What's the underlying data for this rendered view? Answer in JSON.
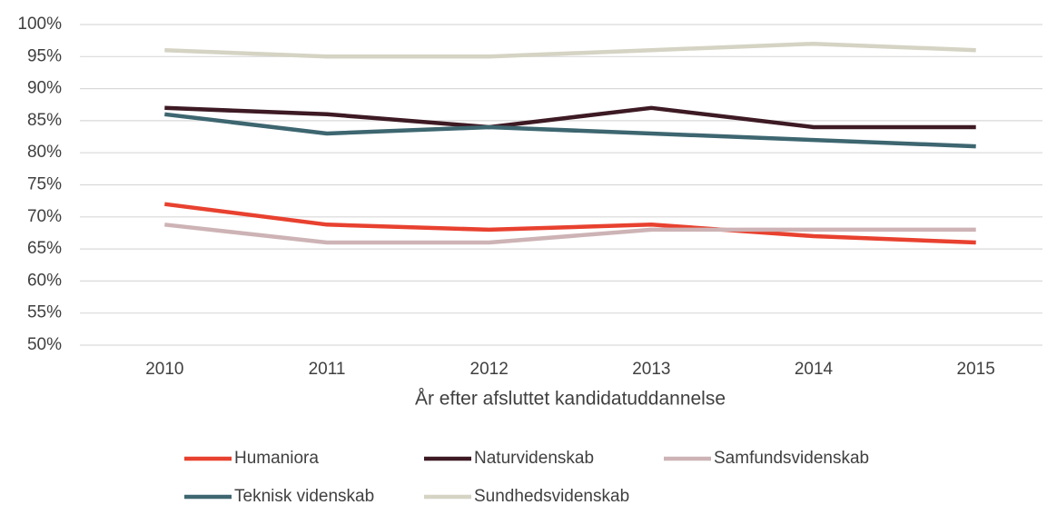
{
  "chart_data": {
    "type": "line",
    "x_label": "År efter afsluttet kandidatuddannelse",
    "categories": [
      "2010",
      "2011",
      "2012",
      "2013",
      "2014",
      "2015"
    ],
    "series": [
      {
        "name": "Humaniora",
        "color": "#e8412f",
        "values": [
          72,
          68.8,
          68,
          68.8,
          67,
          66
        ]
      },
      {
        "name": "Naturvidenskab",
        "color": "#3d1a24",
        "values": [
          87,
          86,
          84,
          87,
          84,
          84
        ]
      },
      {
        "name": "Samfundsvidenskab",
        "color": "#cdb3b5",
        "values": [
          68.8,
          66,
          66,
          68,
          68,
          68
        ]
      },
      {
        "name": "Teknisk videnskab",
        "color": "#3d6670",
        "values": [
          86,
          83,
          84,
          83,
          82,
          81
        ]
      },
      {
        "name": "Sundhedsvidenskab",
        "color": "#d5d3c3",
        "values": [
          96,
          95,
          95,
          96,
          97,
          96
        ]
      }
    ],
    "ylim": [
      50,
      100
    ],
    "yticks": [
      {
        "value": 50,
        "label": "50%"
      },
      {
        "value": 55,
        "label": "55%"
      },
      {
        "value": 60,
        "label": "60%"
      },
      {
        "value": 65,
        "label": "65%"
      },
      {
        "value": 70,
        "label": "70%"
      },
      {
        "value": 75,
        "label": "75%"
      },
      {
        "value": 80,
        "label": "80%"
      },
      {
        "value": 85,
        "label": "85%"
      },
      {
        "value": 90,
        "label": "90%"
      },
      {
        "value": 95,
        "label": "95%"
      },
      {
        "value": 100,
        "label": "100%"
      }
    ],
    "grid": true,
    "legend": "bottom"
  }
}
